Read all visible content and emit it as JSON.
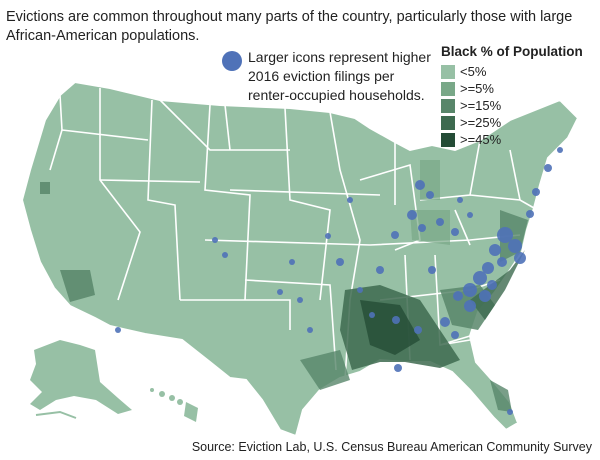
{
  "headline": "Evictions are common throughout many parts of the country, particularly those with large African-American populations.",
  "icon_note": {
    "icon": "eviction-circle-icon",
    "text": "Larger icons represent higher 2016 eviction filings per renter-occupied households."
  },
  "legend": {
    "title": "Black % of Population",
    "items": [
      {
        "label": "<5%",
        "color": "#97c0a5"
      },
      {
        "label": ">=5%",
        "color": "#79a888"
      },
      {
        "label": ">=15%",
        "color": "#58866a"
      },
      {
        "label": ">=25%",
        "color": "#3d6a4f"
      },
      {
        "label": ">=45%",
        "color": "#244c36"
      }
    ]
  },
  "source": "Source: Eviction Lab, U.S. Census Bureau American Community Survey",
  "colors": {
    "land": "#97c0a5",
    "border": "#ffffff",
    "eviction_marker": "#4f72b8"
  }
}
